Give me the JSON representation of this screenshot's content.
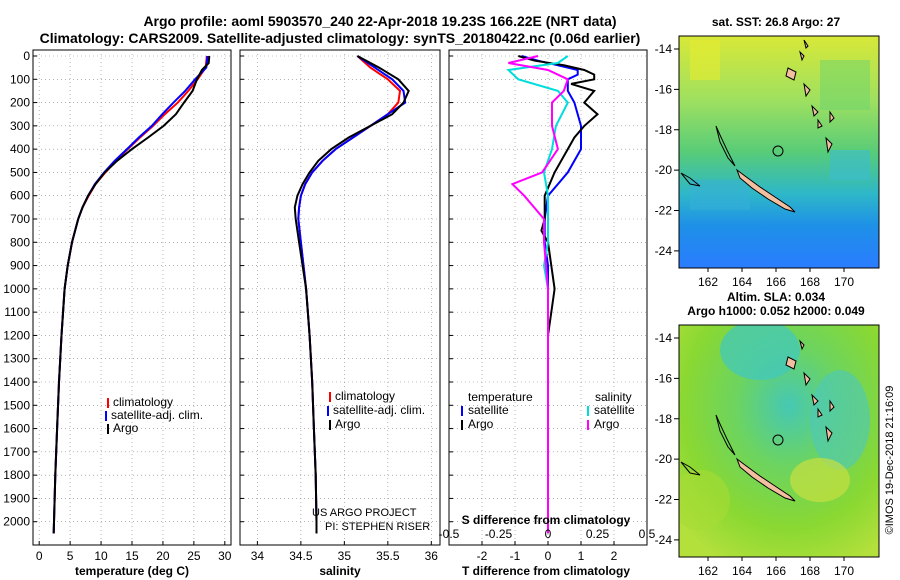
{
  "header": {
    "title_line1": "Argo profile: aoml 5903570_240 22-Apr-2018 19.23S 166.22E (NRT data)",
    "title_line2": "Climatology: CARS2009. Satellite-adjusted climatology: synTS_20180422.nc (0.06d earlier)"
  },
  "colors": {
    "climatology": "#ff0000",
    "satellite": "#0000ff",
    "argo": "#000000",
    "sat_salinity": "#00dddd",
    "argo_salinity": "#ff00ff"
  },
  "depth_axis": {
    "range": [
      0,
      2100
    ],
    "ticks": [
      0,
      100,
      200,
      300,
      400,
      500,
      600,
      700,
      800,
      900,
      1000,
      1100,
      1200,
      1300,
      1400,
      1500,
      1600,
      1700,
      1800,
      1900,
      2000
    ],
    "tick_labels": [
      "0",
      "100",
      "200",
      "300",
      "400",
      "500",
      "600",
      "700",
      "800",
      "900",
      "1000",
      "1100",
      "1200",
      "1300",
      "1400",
      "1500",
      "1600",
      "1700",
      "1800",
      "1900",
      "2000"
    ]
  },
  "chart_data": [
    {
      "type": "line",
      "name": "temperature",
      "xlabel": "temperature (deg C)",
      "xlim": [
        -1,
        31
      ],
      "xticks": [
        0,
        5,
        10,
        15,
        20,
        25,
        30
      ],
      "xtick_labels": [
        "0",
        "5",
        "10",
        "15",
        "20",
        "25",
        "30"
      ],
      "legend": [
        "climatology",
        "satellite-adj. clim.",
        "Argo"
      ],
      "series": [
        {
          "name": "climatology",
          "depth": [
            0,
            50,
            100,
            150,
            200,
            250,
            300,
            350,
            400,
            450,
            500,
            550,
            600,
            650,
            700,
            800,
            900,
            1000,
            1200,
            1400,
            1600,
            1800,
            2000,
            2050
          ],
          "values": [
            27.1,
            26.9,
            25.6,
            24.1,
            22.4,
            20.3,
            18.4,
            16.3,
            14.3,
            12.4,
            10.7,
            9.1,
            8.0,
            7.0,
            6.3,
            5.3,
            4.6,
            4.1,
            3.6,
            3.2,
            2.9,
            2.6,
            2.4,
            2.35
          ]
        },
        {
          "name": "satellite-adj. clim.",
          "depth": [
            0,
            50,
            100,
            150,
            200,
            250,
            300,
            350,
            400,
            450,
            500,
            550,
            600,
            650,
            700,
            800,
            900,
            1000,
            1200,
            1400,
            1600,
            1800,
            2000,
            2050
          ],
          "values": [
            27.2,
            27.0,
            25.2,
            23.6,
            21.7,
            19.9,
            18.2,
            16.1,
            14.2,
            12.2,
            10.5,
            9.0,
            7.9,
            7.0,
            6.3,
            5.3,
            4.6,
            4.1,
            3.6,
            3.2,
            2.9,
            2.6,
            2.4,
            2.35
          ]
        },
        {
          "name": "Argo",
          "depth": [
            0,
            30,
            60,
            100,
            150,
            200,
            250,
            300,
            350,
            400,
            450,
            500,
            550,
            600,
            650,
            700,
            800,
            900,
            1000,
            1200,
            1400,
            1600,
            1800,
            2000,
            2050
          ],
          "values": [
            27.5,
            27.4,
            26.3,
            25.5,
            24.8,
            23.4,
            22.1,
            20.1,
            17.6,
            15.0,
            12.6,
            10.6,
            9.1,
            7.9,
            7.0,
            6.3,
            5.3,
            4.6,
            4.1,
            3.6,
            3.2,
            2.9,
            2.6,
            2.4,
            2.35
          ]
        }
      ]
    },
    {
      "type": "line",
      "name": "salinity",
      "xlabel": "salinity",
      "xlim": [
        33.8,
        36.1
      ],
      "xticks": [
        34,
        34.5,
        35,
        35.5,
        36
      ],
      "xtick_labels": [
        "34",
        "34.5",
        "35",
        "35.5",
        "36"
      ],
      "legend": [
        "climatology",
        "satellite-adj. clim.",
        "Argo"
      ],
      "credit_line1": "US ARGO PROJECT",
      "credit_line2": "PI: STEPHEN RISER",
      "series": [
        {
          "name": "climatology",
          "depth": [
            0,
            50,
            100,
            150,
            200,
            250,
            300,
            350,
            400,
            450,
            500,
            550,
            600,
            650,
            700,
            800,
            900,
            1000,
            1200,
            1400,
            1600,
            1800,
            2000,
            2050
          ],
          "values": [
            35.15,
            35.3,
            35.5,
            35.64,
            35.62,
            35.5,
            35.3,
            35.1,
            34.9,
            34.75,
            34.63,
            34.55,
            34.5,
            34.48,
            34.47,
            34.5,
            34.53,
            34.56,
            34.6,
            34.63,
            34.65,
            34.67,
            34.68,
            34.68
          ]
        },
        {
          "name": "satellite-adj. clim.",
          "depth": [
            0,
            50,
            100,
            150,
            200,
            250,
            300,
            350,
            400,
            450,
            500,
            550,
            600,
            650,
            700,
            800,
            900,
            1000,
            1200,
            1400,
            1600,
            1800,
            2000,
            2050
          ],
          "values": [
            35.15,
            35.35,
            35.55,
            35.68,
            35.7,
            35.5,
            35.3,
            35.1,
            34.9,
            34.75,
            34.63,
            34.55,
            34.5,
            34.48,
            34.47,
            34.5,
            34.53,
            34.56,
            34.6,
            34.63,
            34.65,
            34.67,
            34.68,
            34.68
          ]
        },
        {
          "name": "Argo",
          "depth": [
            0,
            50,
            100,
            150,
            200,
            250,
            300,
            350,
            400,
            450,
            500,
            550,
            600,
            650,
            700,
            800,
            900,
            1000,
            1200,
            1400,
            1600,
            1800,
            2000,
            2050
          ],
          "values": [
            35.15,
            35.4,
            35.62,
            35.74,
            35.68,
            35.55,
            35.3,
            35.05,
            34.85,
            34.7,
            34.6,
            34.52,
            34.46,
            34.43,
            34.44,
            34.48,
            34.52,
            34.56,
            34.6,
            34.63,
            34.65,
            34.67,
            34.68,
            34.68
          ]
        }
      ]
    },
    {
      "type": "line",
      "name": "difference",
      "xlabel": "T difference from climatology",
      "xlabel_top": "S difference from climatology",
      "xlim": [
        -3,
        3
      ],
      "xticks": [
        -2,
        -1,
        0,
        1,
        2
      ],
      "xtick_labels": [
        "-2",
        "-1",
        "0",
        "1",
        "2"
      ],
      "xticks_top": [
        -0.5,
        -0.25,
        0,
        0.25,
        0.5
      ],
      "xtick_labels_top": [
        "-0.5",
        "-0.25",
        "0",
        "0.25",
        "0.5"
      ],
      "legend_left_title": "temperature",
      "legend_right_title": "salinity",
      "legend_left": [
        "satellite",
        "Argo"
      ],
      "legend_right": [
        "satellite",
        "Argo"
      ],
      "series": [
        {
          "name": "T satellite",
          "depth": [
            0,
            20,
            40,
            60,
            80,
            100,
            150,
            200,
            300,
            400,
            500,
            550,
            600,
            700,
            800,
            900,
            1000,
            1200,
            1500,
            1800,
            2050
          ],
          "values": [
            -0.8,
            -0.3,
            0.3,
            0.9,
            0.9,
            0.6,
            0.6,
            0.8,
            1.0,
            1.0,
            0.6,
            0.3,
            0.0,
            -0.1,
            -0.1,
            0.0,
            0.0,
            0.0,
            0.0,
            0.0,
            0.0
          ]
        },
        {
          "name": "T Argo",
          "depth": [
            0,
            20,
            40,
            60,
            80,
            100,
            120,
            150,
            200,
            250,
            300,
            350,
            400,
            500,
            600,
            700,
            750,
            800,
            900,
            1000,
            1200,
            1500,
            2050
          ],
          "values": [
            -0.9,
            -0.4,
            0.5,
            1.1,
            1.4,
            1.4,
            0.7,
            1.4,
            1.1,
            1.5,
            1.1,
            0.8,
            0.6,
            0.2,
            -0.1,
            -0.1,
            -0.2,
            0.0,
            0.1,
            0.2,
            0.0,
            0.0,
            0.0
          ]
        },
        {
          "name": "S satellite",
          "depth": [
            0,
            30,
            60,
            100,
            150,
            200,
            300,
            400,
            500,
            600,
            700,
            800,
            900,
            1000,
            1200,
            1500,
            2050
          ],
          "values": [
            0.1,
            0.05,
            -0.2,
            -0.15,
            0.05,
            0.1,
            0.04,
            0.02,
            -0.02,
            0.0,
            0.0,
            0.0,
            -0.02,
            0.0,
            0.0,
            0.0,
            0.0
          ]
        },
        {
          "name": "S Argo",
          "depth": [
            0,
            30,
            60,
            100,
            150,
            200,
            300,
            400,
            500,
            550,
            600,
            700,
            800,
            1000,
            1500,
            2050
          ],
          "values": [
            -0.05,
            -0.2,
            0.0,
            0.1,
            0.08,
            0.02,
            0.02,
            0.05,
            -0.03,
            -0.18,
            -0.12,
            -0.02,
            -0.02,
            0.0,
            0.0,
            0.0
          ]
        }
      ]
    }
  ],
  "maps": {
    "top_title": "sat. SST: 26.8 Argo: 27",
    "bottom_title_line1": "Altim. SLA: 0.034",
    "bottom_title_line2": "Argo h1000: 0.052 h2000: 0.049",
    "lat_ticks": [
      "-14",
      "-16",
      "-18",
      "-20",
      "-22",
      "-24"
    ],
    "lon_ticks": [
      "162",
      "164",
      "166",
      "168",
      "170"
    ]
  },
  "footer": {
    "imos_stamp": "©IMOS 19-Dec-2018 21:16:09"
  }
}
